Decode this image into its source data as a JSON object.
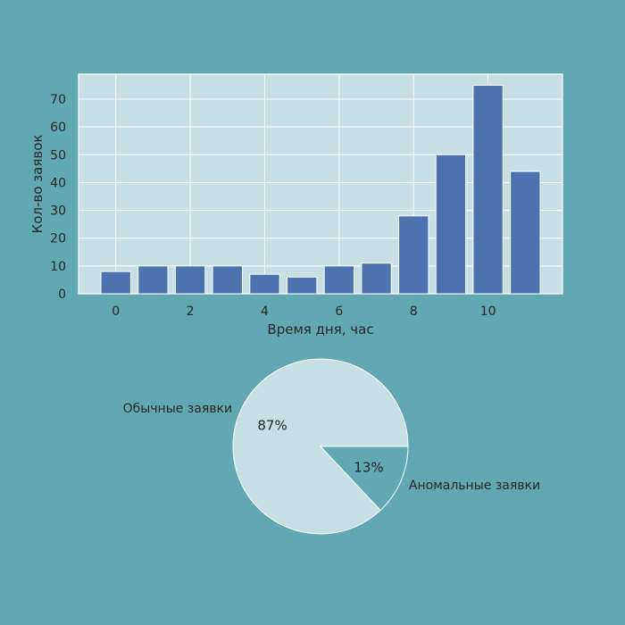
{
  "colors": {
    "background": "#62a8b3",
    "plot_bg": "#c5dfe4",
    "bar": "#4c72b0",
    "grid": "#ffffff",
    "pie_main": "#c5dfe4",
    "pie_minor": "#62a8b3",
    "text": "#262626"
  },
  "chart_data": [
    {
      "type": "bar",
      "title": "",
      "xlabel": "Время дня, час",
      "ylabel": "Кол-во заявок",
      "x": [
        0,
        1,
        2,
        3,
        4,
        5,
        6,
        7,
        8,
        9,
        10,
        11
      ],
      "values": [
        8,
        10,
        10,
        10,
        7,
        6,
        10,
        11,
        28,
        50,
        75,
        44
      ],
      "xlim": [
        -1,
        12
      ],
      "ylim": [
        0,
        79
      ],
      "xticks": [
        0,
        2,
        4,
        6,
        8,
        10
      ],
      "yticks": [
        0,
        10,
        20,
        30,
        40,
        50,
        60,
        70
      ],
      "grid": true
    },
    {
      "type": "pie",
      "title": "",
      "slices": [
        {
          "label": "Обычные заявки",
          "value": 87,
          "pct_label": "87%"
        },
        {
          "label": "Аномальные заявки",
          "value": 13,
          "pct_label": "13%"
        }
      ]
    }
  ]
}
